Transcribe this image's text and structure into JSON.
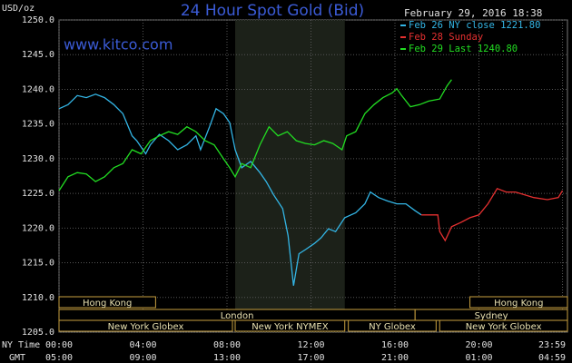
{
  "chart_data": {
    "type": "line",
    "title": "24 Hour Spot Gold (Bid)",
    "subtitle": "www.kitco.com",
    "date": "February 29, 2016 18:38",
    "ylabel": "USD/oz",
    "xlabel": "NY Time",
    "x2label": "GMT",
    "xlim": [
      0,
      24
    ],
    "ylim": [
      1205,
      1250
    ],
    "yticks": [
      {
        "value": 1205,
        "label": "1205.0"
      },
      {
        "value": 1210,
        "label": "1210.0"
      },
      {
        "value": 1215,
        "label": "1215.0"
      },
      {
        "value": 1220,
        "label": "1220.0"
      },
      {
        "value": 1225,
        "label": "1225.0"
      },
      {
        "value": 1230,
        "label": "1230.0"
      },
      {
        "value": 1235,
        "label": "1235.0"
      },
      {
        "value": 1240,
        "label": "1240.0"
      },
      {
        "value": 1245,
        "label": "1245.0"
      },
      {
        "value": 1250,
        "label": "1250.0"
      }
    ],
    "xticks": [
      {
        "value": 0,
        "label": "00:00"
      },
      {
        "value": 4,
        "label": "04:00"
      },
      {
        "value": 8,
        "label": "08:00"
      },
      {
        "value": 12,
        "label": "12:00"
      },
      {
        "value": 16,
        "label": "16:00"
      },
      {
        "value": 20,
        "label": "20:00"
      },
      {
        "value": 23.98,
        "label": "23:59"
      }
    ],
    "x2ticklabels": [
      "05:00",
      "09:00",
      "13:00",
      "17:00",
      "21:00",
      "01:00",
      "04:59"
    ],
    "grid": true,
    "highlight": {
      "start": 8.39,
      "end": 13.61,
      "color": "#1c2119"
    },
    "sessions": [
      {
        "label": "Hong Kong",
        "start": 0,
        "end": 4.6,
        "row": 0
      },
      {
        "label": "Hong Kong",
        "start": 19.57,
        "end": 24.3,
        "row": 0
      },
      {
        "label": "London",
        "start": 0,
        "end": 16.96,
        "row": 1
      },
      {
        "label": "Sydney",
        "start": 16.96,
        "end": 24.3,
        "row": 1
      },
      {
        "label": "New York Globex",
        "start": 0,
        "end": 8.26,
        "row": 2
      },
      {
        "label": "New York NYMEX",
        "start": 8.39,
        "end": 13.61,
        "row": 2
      },
      {
        "label": "NY Globex",
        "start": 13.78,
        "end": 17.96,
        "row": 2
      },
      {
        "label": "New York Globex",
        "start": 18.13,
        "end": 24.3,
        "row": 2
      }
    ],
    "series": [
      {
        "name": "Feb 26 NY close 1221.80",
        "color": "#33b5e5",
        "x": [
          0,
          0.43,
          0.87,
          1.3,
          1.74,
          2.17,
          2.61,
          3.04,
          3.48,
          3.7,
          4.13,
          4.35,
          4.78,
          5.22,
          5.65,
          6.09,
          6.52,
          6.74,
          7.17,
          7.48,
          7.83,
          8.13,
          8.39,
          8.7,
          9.13,
          9.57,
          9.87,
          10.22,
          10.65,
          10.91,
          11.17,
          11.43,
          11.74,
          12.17,
          12.48,
          12.83,
          13.17,
          13.61,
          14.13,
          14.57,
          14.83,
          15.22,
          15.65,
          16.09,
          16.52,
          16.96,
          17.26
        ],
        "values": [
          1237.2,
          1237.8,
          1239.1,
          1238.8,
          1239.3,
          1238.8,
          1237.8,
          1236.5,
          1233.3,
          1232.6,
          1230.7,
          1232.0,
          1233.5,
          1232.6,
          1231.3,
          1232.0,
          1233.3,
          1231.3,
          1234.6,
          1237.2,
          1236.5,
          1235.2,
          1231.3,
          1228.7,
          1229.6,
          1228.0,
          1226.7,
          1224.8,
          1222.8,
          1218.9,
          1211.7,
          1216.3,
          1216.9,
          1217.8,
          1218.6,
          1219.9,
          1219.5,
          1221.5,
          1222.2,
          1223.5,
          1225.2,
          1224.4,
          1223.9,
          1223.5,
          1223.5,
          1222.5,
          1221.9
        ]
      },
      {
        "name": "Feb 28 Sunday",
        "color": "#e53030",
        "x": [
          17.26,
          18.04,
          18.13,
          18.39,
          18.7,
          19.13,
          19.57,
          20,
          20.43,
          20.87,
          21.3,
          21.74,
          22.17,
          22.61,
          23.26,
          23.78,
          23.98
        ],
        "values": [
          1221.9,
          1221.9,
          1219.5,
          1218.2,
          1220.2,
          1220.8,
          1221.5,
          1221.9,
          1223.5,
          1225.7,
          1225.2,
          1225.2,
          1224.8,
          1224.4,
          1224.1,
          1224.4,
          1225.4
        ]
      },
      {
        "name": "Feb 29 Last 1240.80",
        "color": "#22dd22",
        "x": [
          0,
          0.43,
          0.87,
          1.3,
          1.74,
          2.17,
          2.61,
          3.04,
          3.48,
          3.91,
          4.35,
          4.78,
          5.22,
          5.65,
          6.09,
          6.52,
          6.96,
          7.39,
          7.83,
          8.13,
          8.39,
          8.7,
          9.13,
          9.57,
          10,
          10.43,
          10.87,
          11.3,
          11.74,
          12.17,
          12.61,
          13.04,
          13.48,
          13.7,
          14.13,
          14.57,
          15,
          15.43,
          15.87,
          16.09,
          16.3,
          16.74,
          17.17,
          17.61,
          18.13,
          18.48,
          18.7
        ],
        "values": [
          1225.4,
          1227.4,
          1228.0,
          1227.8,
          1226.7,
          1227.4,
          1228.7,
          1229.3,
          1231.3,
          1230.7,
          1232.6,
          1233.3,
          1233.9,
          1233.5,
          1234.6,
          1233.9,
          1232.6,
          1232.0,
          1230.0,
          1228.7,
          1227.4,
          1229.3,
          1228.7,
          1232.0,
          1234.6,
          1233.3,
          1233.9,
          1232.6,
          1232.2,
          1232.0,
          1232.6,
          1232.2,
          1231.3,
          1233.3,
          1233.9,
          1236.5,
          1237.8,
          1238.8,
          1239.5,
          1240.1,
          1239.2,
          1237.5,
          1237.8,
          1238.3,
          1238.6,
          1240.5,
          1241.4
        ]
      }
    ]
  }
}
